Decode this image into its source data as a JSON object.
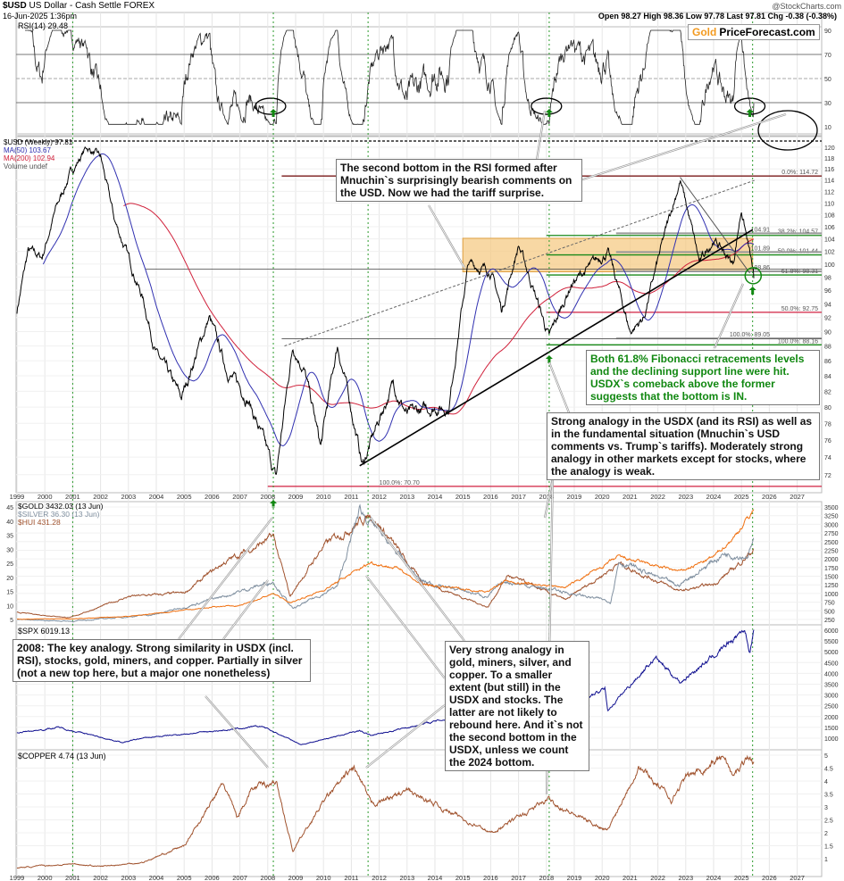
{
  "header": {
    "symbol": "$USD",
    "name": "US Dollar - Cash Settle FOREX",
    "datetime": "16-Jun-2025 1:36pm",
    "source": "@StockCharts.com",
    "quote": "Open 98.27  High 98.36  Low 97.78  Last 97.81  Chg -0.38 (-0.38%)"
  },
  "logo": {
    "gold": "Gold",
    "rest": "PriceForecast.com"
  },
  "annotations": {
    "rsi_note": "The second bottom in the RSI formed after Mnuchin`s surprisingly bearish comments on the USD. Now we had the tariff surprise.",
    "fib_note": "Both 61.8% Fibonacci retracements levels and the declining support line were hit. USDX`s comeback above the former suggests that the bottom is IN.",
    "usdx_note": "Strong analogy in the USDX (and its RSI) as well as in the fundamental situation (Mnuchin`s USD comments vs. Trump`s tariffs). Moderately strong analogy in other markets except for stocks, where the analogy is weak.",
    "note_2008": "2008: The key analogy. Strong similarity in USDX (incl. RSI), stocks, gold, miners, and copper. Partially in silver (not a new top here, but a major one nonetheless)",
    "note_2011": "Very strong analogy in gold, miners, silver, and copper. To a smaller extent (but still) in the USDX and stocks. The latter are not likely to rebound here. And it`s not the second bottom in the USDX, unless we count the 2024 bottom."
  },
  "colors": {
    "price": "#000000",
    "ma50": "#3030b0",
    "ma200": "#d0203a",
    "gold": "#f07010",
    "silver": "#8090a0",
    "hui": "#a0522d",
    "spx": "#101090",
    "copper": "#a0522d",
    "fib_green": "#1a8a1a",
    "fib_maroon": "#7a1a1a",
    "fib_red": "#d02040",
    "zone": "#f5c77e",
    "highlight": "#118811"
  },
  "chart_data": [
    {
      "type": "line",
      "panel": "rsi",
      "legend": "RSI(14) 29.48",
      "yticks": [
        10,
        30,
        50,
        70,
        90
      ],
      "ylim": [
        0,
        100
      ],
      "reference_lines": [
        30,
        50,
        70
      ]
    },
    {
      "type": "line",
      "panel": "usd",
      "xlim": [
        1999,
        2027.8
      ],
      "ylim": [
        70,
        122
      ],
      "yticks": [
        72,
        74,
        76,
        78,
        80,
        82,
        84,
        86,
        88,
        90,
        92,
        94,
        96,
        98,
        100,
        102,
        104,
        106,
        108,
        110,
        112,
        114,
        116,
        118,
        120
      ],
      "legend": [
        "$USD (Weekly) 97.81",
        "MA(50) 103.67",
        "MA(200) 102.94",
        "Volume undef"
      ],
      "series": [
        {
          "name": "$USD (Weekly) 97.81",
          "points": [
            [
              1999,
              93
            ],
            [
              1999.4,
              102
            ],
            [
              1999.9,
              101
            ],
            [
              2000.4,
              109
            ],
            [
              2000.9,
              115
            ],
            [
              2001.5,
              120
            ],
            [
              2002.0,
              118
            ],
            [
              2002.5,
              107
            ],
            [
              2003.0,
              101
            ],
            [
              2003.5,
              95
            ],
            [
              2004.0,
              87
            ],
            [
              2004.9,
              81
            ],
            [
              2005.9,
              92
            ],
            [
              2006.5,
              85
            ],
            [
              2007.3,
              81
            ],
            [
              2008.3,
              71.5
            ],
            [
              2008.9,
              88
            ],
            [
              2009.3,
              85
            ],
            [
              2009.9,
              75
            ],
            [
              2010.5,
              88
            ],
            [
              2011.4,
              73
            ],
            [
              2012.5,
              83
            ],
            [
              2013.0,
              79
            ],
            [
              2014.0,
              80
            ],
            [
              2014.5,
              80
            ],
            [
              2015.2,
              100
            ],
            [
              2016.0,
              99
            ],
            [
              2016.4,
              93
            ],
            [
              2017.0,
              103
            ],
            [
              2018.1,
              89
            ],
            [
              2018.9,
              97
            ],
            [
              2020.2,
              102
            ],
            [
              2021.0,
              90
            ],
            [
              2021.5,
              92
            ],
            [
              2022.8,
              114
            ],
            [
              2023.5,
              100
            ],
            [
              2024.0,
              104
            ],
            [
              2024.7,
              100
            ],
            [
              2025.0,
              109
            ],
            [
              2025.45,
              97.81
            ]
          ]
        }
      ],
      "fib_levels": [
        {
          "label": "0.0%: 114.72",
          "value": 114.72,
          "color": "maroon"
        },
        {
          "label": "38.2%: 104.57",
          "value": 104.57,
          "color": "green"
        },
        {
          "label": "104.91",
          "value": 104.91,
          "color": "gray"
        },
        {
          "label": "50.0%: 101.44",
          "value": 101.44,
          "color": "green"
        },
        {
          "label": "101.89",
          "value": 101.89,
          "color": "gray"
        },
        {
          "label": "98.86",
          "value": 98.86,
          "color": "gray"
        },
        {
          "label": "61.8%: 98.31",
          "value": 98.31,
          "color": "green"
        },
        {
          "label": "50.0%: 92.75",
          "value": 92.75,
          "color": "red"
        },
        {
          "label": "100.0%: 89.05",
          "value": 89.05,
          "color": "gray"
        },
        {
          "label": "100.0%: 88.16",
          "value": 88.16,
          "color": "green"
        },
        {
          "label": "100.0%: 70.70",
          "value": 70.7,
          "color": "red"
        }
      ],
      "zone": [
        2015.0,
        2025.4,
        98.8,
        104.1
      ]
    },
    {
      "type": "line",
      "panel": "metals",
      "ylim_right": [
        250,
        3500
      ],
      "yticks_right": [
        250,
        500,
        750,
        1000,
        1250,
        1500,
        1750,
        2000,
        2250,
        2500,
        2750,
        3000,
        3250,
        3500
      ],
      "yticks_left": [
        5,
        10,
        15,
        20,
        25,
        30,
        35,
        40,
        45
      ],
      "series": [
        {
          "name": "$GOLD 3432.03 (13 Jun)",
          "points": [
            [
              1999,
              260
            ],
            [
              2001,
              265
            ],
            [
              2003,
              340
            ],
            [
              2006,
              600
            ],
            [
              2006.5,
              650
            ],
            [
              2007,
              640
            ],
            [
              2008.2,
              1000
            ],
            [
              2008.8,
              730
            ],
            [
              2010,
              1100
            ],
            [
              2011.7,
              1900
            ],
            [
              2012.8,
              1700
            ],
            [
              2013.5,
              1250
            ],
            [
              2015.9,
              1060
            ],
            [
              2016.5,
              1350
            ],
            [
              2018.7,
              1180
            ],
            [
              2020.6,
              2050
            ],
            [
              2022.8,
              1630
            ],
            [
              2024,
              2050
            ],
            [
              2024.8,
              2700
            ],
            [
              2025.45,
              3432
            ]
          ]
        },
        {
          "name": "$SILVER 36.30 (13 Jun)",
          "points": [
            [
              1999,
              5
            ],
            [
              2001,
              4.3
            ],
            [
              2004,
              7
            ],
            [
              2006.4,
              14
            ],
            [
              2008.2,
              20
            ],
            [
              2008.9,
              9
            ],
            [
              2010.5,
              18
            ],
            [
              2011.3,
              48
            ],
            [
              2013.5,
              20
            ],
            [
              2015.9,
              14
            ],
            [
              2016.5,
              20
            ],
            [
              2019,
              15
            ],
            [
              2020.3,
              12
            ],
            [
              2020.6,
              28
            ],
            [
              2022.7,
              18
            ],
            [
              2024.4,
              31
            ],
            [
              2025.2,
              30
            ],
            [
              2025.45,
              36.3
            ]
          ]
        },
        {
          "name": "$HUI 431.28",
          "points": [
            [
              1999,
              70
            ],
            [
              2000.9,
              40
            ],
            [
              2003,
              160
            ],
            [
              2005,
              180
            ],
            [
              2006.4,
              350
            ],
            [
              2008.2,
              500
            ],
            [
              2008.8,
              160
            ],
            [
              2010,
              450
            ],
            [
              2011.7,
              630
            ],
            [
              2013.5,
              250
            ],
            [
              2015.9,
              100
            ],
            [
              2016.6,
              280
            ],
            [
              2018.7,
              140
            ],
            [
              2020.6,
              350
            ],
            [
              2022.8,
              190
            ],
            [
              2024,
              230
            ],
            [
              2024.8,
              330
            ],
            [
              2025.45,
              431
            ]
          ]
        }
      ]
    },
    {
      "type": "line",
      "panel": "spx",
      "ylim": [
        500,
        6300
      ],
      "yticks": [
        1000,
        1500,
        2000,
        2500,
        3000,
        3500,
        4000,
        4500,
        5000,
        5500,
        6000
      ],
      "series": [
        {
          "name": "$SPX 6019.13",
          "points": [
            [
              1999,
              1250
            ],
            [
              2000.5,
              1500
            ],
            [
              2002.8,
              800
            ],
            [
              2003.5,
              1000
            ],
            [
              2007.8,
              1550
            ],
            [
              2009.2,
              700
            ],
            [
              2011.3,
              1350
            ],
            [
              2011.7,
              1120
            ],
            [
              2013,
              1500
            ],
            [
              2015,
              2050
            ],
            [
              2016.1,
              1850
            ],
            [
              2018,
              2750
            ],
            [
              2018.9,
              2400
            ],
            [
              2020.1,
              3300
            ],
            [
              2020.2,
              2300
            ],
            [
              2021.9,
              4750
            ],
            [
              2022.8,
              3600
            ],
            [
              2024,
              4800
            ],
            [
              2025.1,
              6100
            ],
            [
              2025.3,
              5000
            ],
            [
              2025.45,
              6019
            ]
          ]
        }
      ]
    },
    {
      "type": "line",
      "panel": "copper",
      "ylim": [
        0.6,
        5.2
      ],
      "yticks": [
        1.0,
        1.5,
        2.0,
        2.5,
        3.0,
        3.5,
        4.0,
        4.5,
        5.0
      ],
      "series": [
        {
          "name": "$COPPER 4.74 (13 Jun)",
          "points": [
            [
              1999,
              0.65
            ],
            [
              2001,
              0.8
            ],
            [
              2002,
              0.7
            ],
            [
              2003.5,
              0.85
            ],
            [
              2005,
              1.5
            ],
            [
              2006.4,
              3.9
            ],
            [
              2006.9,
              2.6
            ],
            [
              2007.4,
              3.7
            ],
            [
              2008.3,
              4.0
            ],
            [
              2008.9,
              1.3
            ],
            [
              2010,
              3.2
            ],
            [
              2011.1,
              4.5
            ],
            [
              2011.7,
              3.1
            ],
            [
              2013,
              3.6
            ],
            [
              2014,
              3.1
            ],
            [
              2016,
              2.0
            ],
            [
              2017,
              2.6
            ],
            [
              2018.1,
              3.3
            ],
            [
              2019,
              2.7
            ],
            [
              2020.2,
              2.1
            ],
            [
              2021.3,
              4.6
            ],
            [
              2022.5,
              3.3
            ],
            [
              2023,
              4.1
            ],
            [
              2024.4,
              5.0
            ],
            [
              2024.7,
              4.1
            ],
            [
              2025.2,
              5.0
            ],
            [
              2025.45,
              4.74
            ]
          ]
        }
      ]
    }
  ],
  "x_years": [
    "1999",
    "2000",
    "2001",
    "2002",
    "2003",
    "2004",
    "2005",
    "2006",
    "2007",
    "2008",
    "2009",
    "2010",
    "2011",
    "2012",
    "2013",
    "2014",
    "2015",
    "2016",
    "2017",
    "2018",
    "2019",
    "2020",
    "2021",
    "2022",
    "2023",
    "2024",
    "2025",
    "2026",
    "2027"
  ],
  "analog_dates": [
    2001.0,
    2008.2,
    2011.6,
    2018.1,
    2025.4
  ]
}
